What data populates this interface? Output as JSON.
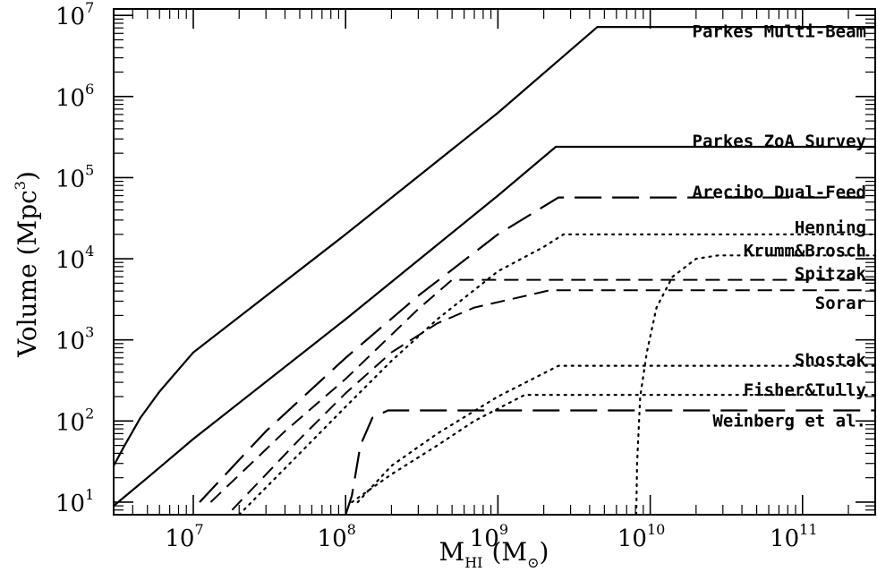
{
  "chart_data": {
    "type": "line",
    "x_scale": "log",
    "y_scale": "log",
    "xlim": [
      3000000,
      300000000000
    ],
    "ylim": [
      7,
      12000000
    ],
    "xlabel": {
      "main": "M",
      "sub": "HI",
      "unit": "(M",
      "unit_sub": "⊙",
      "unit_close": ")"
    },
    "ylabel": {
      "main": "Volume (Mpc",
      "sup": "3",
      "close": ")"
    },
    "x_ticks": [
      {
        "base": "10",
        "exp": "7",
        "value": 10000000
      },
      {
        "base": "10",
        "exp": "8",
        "value": 100000000
      },
      {
        "base": "10",
        "exp": "9",
        "value": 1000000000
      },
      {
        "base": "10",
        "exp": "10",
        "value": 10000000000
      },
      {
        "base": "10",
        "exp": "11",
        "value": 100000000000
      }
    ],
    "y_ticks": [
      {
        "base": "10",
        "exp": "1",
        "value": 10
      },
      {
        "base": "10",
        "exp": "2",
        "value": 100
      },
      {
        "base": "10",
        "exp": "3",
        "value": 1000
      },
      {
        "base": "10",
        "exp": "4",
        "value": 10000
      },
      {
        "base": "10",
        "exp": "5",
        "value": 100000
      },
      {
        "base": "10",
        "exp": "6",
        "value": 1000000
      },
      {
        "base": "10",
        "exp": "7",
        "value": 10000000
      }
    ],
    "series": [
      {
        "name": "Parkes Multi-Beam",
        "style": "solid",
        "points": [
          [
            3000000,
            28
          ],
          [
            3500000,
            48
          ],
          [
            4500000,
            110
          ],
          [
            6000000,
            230
          ],
          [
            10000000,
            700
          ],
          [
            100000000,
            20000
          ],
          [
            1000000000,
            630000
          ],
          [
            4500000000,
            7200000
          ],
          [
            300000000000,
            7200000
          ]
        ]
      },
      {
        "name": "Parkes ZoA Survey",
        "style": "solid",
        "points": [
          [
            3000000,
            9
          ],
          [
            5000000,
            20
          ],
          [
            10000000,
            60
          ],
          [
            100000000,
            1800
          ],
          [
            1000000000,
            60000
          ],
          [
            2400000000,
            240000
          ],
          [
            300000000000,
            240000
          ]
        ]
      },
      {
        "name": "Arecibo Dual-Feed",
        "style": "long-dash",
        "points": [
          [
            11000000,
            10
          ],
          [
            30000000,
            75
          ],
          [
            100000000,
            600
          ],
          [
            300000000,
            3500
          ],
          [
            1000000000,
            20000
          ],
          [
            2500000000,
            57000
          ],
          [
            300000000000,
            57000
          ]
        ]
      },
      {
        "name": "Spitzak",
        "style": "dash",
        "points": [
          [
            13000000,
            10
          ],
          [
            40000000,
            75
          ],
          [
            100000000,
            330
          ],
          [
            300000000,
            2400
          ],
          [
            500000000,
            5500
          ],
          [
            300000000000,
            5500
          ]
        ]
      },
      {
        "name": "Sorar",
        "style": "dash",
        "points": [
          [
            18000000,
            8
          ],
          [
            50000000,
            60
          ],
          [
            100000000,
            220
          ],
          [
            200000000,
            700
          ],
          [
            400000000,
            1600
          ],
          [
            700000000,
            2500
          ],
          [
            2200000000,
            4100
          ],
          [
            300000000000,
            4100
          ]
        ]
      },
      {
        "name": "Henning",
        "style": "dot",
        "points": [
          [
            20000000,
            7
          ],
          [
            50000000,
            40
          ],
          [
            100000000,
            150
          ],
          [
            200000000,
            550
          ],
          [
            400000000,
            1800
          ],
          [
            1000000000,
            7000
          ],
          [
            2000000000,
            14000
          ],
          [
            2700000000,
            20000
          ],
          [
            300000000000,
            20000
          ]
        ]
      },
      {
        "name": "Krumm&Brosch",
        "style": "dot",
        "points": [
          [
            8100000000,
            7
          ],
          [
            8200000000,
            30
          ],
          [
            8600000000,
            200
          ],
          [
            9500000000,
            700
          ],
          [
            11000000000,
            2500
          ],
          [
            14000000000,
            6000
          ],
          [
            20000000000,
            10000
          ],
          [
            28000000000,
            11000
          ],
          [
            300000000000,
            11000
          ]
        ]
      },
      {
        "name": "Shostak",
        "style": "dot",
        "points": [
          [
            120000000,
            10
          ],
          [
            200000000,
            28
          ],
          [
            400000000,
            70
          ],
          [
            1000000000,
            200
          ],
          [
            2500000000,
            480
          ],
          [
            300000000000,
            480
          ]
        ]
      },
      {
        "name": "Fisher&Tully",
        "style": "dot",
        "points": [
          [
            110000000,
            10
          ],
          [
            200000000,
            22
          ],
          [
            400000000,
            50
          ],
          [
            700000000,
            100
          ],
          [
            1500000000,
            210
          ],
          [
            300000000000,
            210
          ]
        ]
      },
      {
        "name": "Weinberg et al.",
        "style": "long-dash",
        "points": [
          [
            100000000,
            7
          ],
          [
            110000000,
            12
          ],
          [
            125000000,
            50
          ],
          [
            150000000,
            110
          ],
          [
            190000000,
            135
          ],
          [
            300000000000,
            135
          ]
        ]
      }
    ],
    "labels": [
      {
        "text": "Parkes Multi-Beam",
        "value": 6300000
      },
      {
        "text": "Parkes ZoA Survey",
        "value": 280000
      },
      {
        "text": "Arecibo Dual-Feed",
        "value": 66000
      },
      {
        "text": "Henning",
        "value": 24000
      },
      {
        "text": "Krumm&Brosch",
        "value": 12500
      },
      {
        "text": "Spitzak",
        "value": 6500
      },
      {
        "text": "Sorar",
        "value": 2800
      },
      {
        "text": "Shostak",
        "value": 560
      },
      {
        "text": "Fisher&Tully",
        "value": 240
      },
      {
        "text": "Weinberg et al.",
        "value": 100
      }
    ],
    "grid": false
  }
}
